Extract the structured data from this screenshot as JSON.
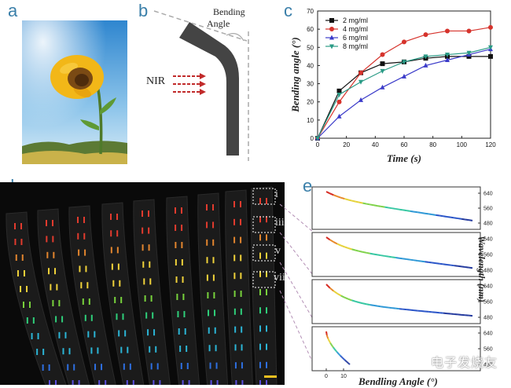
{
  "panel_labels": {
    "a": "a",
    "b": "b",
    "c": "c",
    "d": "d",
    "e": "e"
  },
  "panel_b": {
    "angle_label_line1": "Bending",
    "angle_label_line2": "Angle",
    "nir_label": "NIR"
  },
  "panel_d": {
    "strip_labels": [
      "i",
      "iii",
      "v",
      "vii"
    ]
  },
  "panel_e": {
    "y_axis_label": "Wavelength (nm)",
    "x_axis_label": "Bendling Angle (°)",
    "y_ticks": [
      "640",
      "560",
      "480"
    ],
    "y_ticks_alt": [
      "640",
      "560",
      "480"
    ],
    "x_ticks": [
      "0",
      "10"
    ]
  },
  "watermark": "电子发烧友",
  "chart_data": [
    {
      "type": "line",
      "title": "",
      "xlabel": "Time (s)",
      "ylabel": "Bending angle (°)",
      "xlim": [
        0,
        120
      ],
      "ylim": [
        0,
        70
      ],
      "x_ticks": [
        0,
        20,
        40,
        60,
        80,
        100,
        120
      ],
      "y_ticks": [
        0,
        10,
        20,
        30,
        40,
        50,
        60,
        70
      ],
      "legend_position": "top-left",
      "x": [
        0,
        15,
        30,
        45,
        60,
        75,
        90,
        105,
        120
      ],
      "series": [
        {
          "name": "2 mg/ml",
          "color": "#111111",
          "marker": "square",
          "values": [
            0,
            26,
            36,
            41,
            42,
            44,
            45,
            45,
            45
          ]
        },
        {
          "name": "4 mg/ml",
          "color": "#d6332c",
          "marker": "circle",
          "values": [
            0,
            20,
            36,
            46,
            53,
            57,
            59,
            59,
            61
          ]
        },
        {
          "name": "6 mg/ml",
          "color": "#3b3bc9",
          "marker": "triangle-up",
          "values": [
            0,
            12,
            21,
            28,
            34,
            40,
            43,
            46,
            49
          ]
        },
        {
          "name": "8 mg/ml",
          "color": "#2a9b86",
          "marker": "triangle-down",
          "values": [
            0,
            24,
            31,
            37,
            42,
            45,
            46,
            47,
            50
          ]
        }
      ]
    }
  ]
}
